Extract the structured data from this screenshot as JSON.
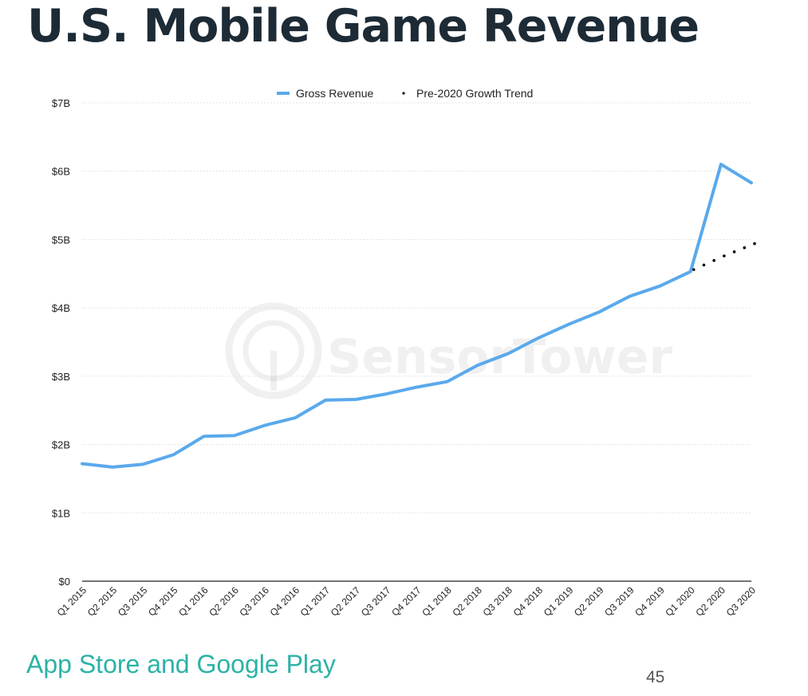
{
  "page": {
    "title": "U.S. Mobile Game Revenue",
    "source": "App Store and Google Play",
    "page_number": "45",
    "watermark": "SensorTower"
  },
  "chart_data": {
    "type": "line",
    "title": "",
    "xlabel": "",
    "ylabel": "",
    "categories": [
      "Q1 2015",
      "Q2 2015",
      "Q3 2015",
      "Q4 2015",
      "Q1 2016",
      "Q2 2016",
      "Q3 2016",
      "Q4 2016",
      "Q1 2017",
      "Q2 2017",
      "Q3 2017",
      "Q4 2017",
      "Q1 2018",
      "Q2 2018",
      "Q3 2018",
      "Q4 2018",
      "Q1 2019",
      "Q2 2019",
      "Q3 2019",
      "Q4 2019",
      "Q1 2020",
      "Q2 2020",
      "Q3 2020"
    ],
    "y_ticks": [
      {
        "value": 0,
        "label": "$0"
      },
      {
        "value": 1,
        "label": "$1B"
      },
      {
        "value": 2,
        "label": "$2B"
      },
      {
        "value": 3,
        "label": "$3B"
      },
      {
        "value": 4,
        "label": "$4B"
      },
      {
        "value": 5,
        "label": "$5B"
      },
      {
        "value": 6,
        "label": "$6B"
      },
      {
        "value": 7,
        "label": "$7B"
      }
    ],
    "ylim": [
      0,
      7
    ],
    "y_unit": "billions USD",
    "grid": true,
    "legend_position": "top-center",
    "series": [
      {
        "name": "Gross Revenue",
        "style": "solid",
        "color": "#5aa9ec",
        "values": [
          1.72,
          1.67,
          1.71,
          1.85,
          2.12,
          2.13,
          2.28,
          2.39,
          2.65,
          2.66,
          2.74,
          2.84,
          2.92,
          3.16,
          3.33,
          3.56,
          3.76,
          3.94,
          4.17,
          4.32,
          4.53,
          6.1,
          5.83
        ]
      },
      {
        "name": "Pre-2020 Growth Trend",
        "style": "dotted",
        "color": "#000000",
        "values": [
          null,
          null,
          null,
          null,
          null,
          null,
          null,
          null,
          null,
          null,
          null,
          null,
          null,
          null,
          null,
          null,
          null,
          null,
          null,
          null,
          4.56,
          4.76,
          4.94
        ]
      }
    ]
  }
}
